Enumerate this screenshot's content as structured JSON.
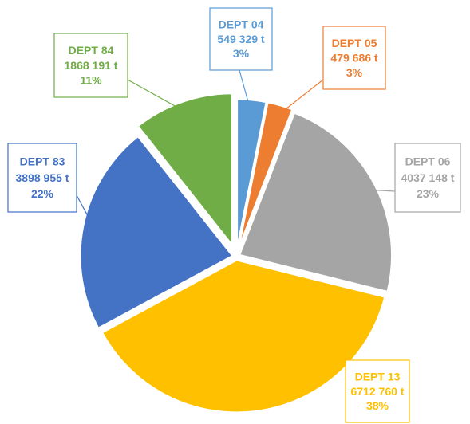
{
  "chart_data": {
    "type": "pie",
    "categories": [
      "DEPT 04",
      "DEPT 05",
      "DEPT 06",
      "DEPT 13",
      "DEPT 83",
      "DEPT 84"
    ],
    "values": [
      549329,
      479686,
      4037148,
      6712760,
      3898955,
      1868191
    ],
    "value_labels": [
      "549 329 t",
      "479 686 t",
      "4037 148 t",
      "6712 760 t",
      "3898 955 t",
      "1868 191 t"
    ],
    "percentages": [
      3,
      3,
      23,
      38,
      22,
      11
    ],
    "percentage_labels": [
      "3%",
      "3%",
      "23%",
      "38%",
      "22%",
      "11%"
    ],
    "colors": [
      "#5b9bd5",
      "#ed7d31",
      "#a5a5a5",
      "#ffc000",
      "#4472c4",
      "#70ad47"
    ]
  }
}
